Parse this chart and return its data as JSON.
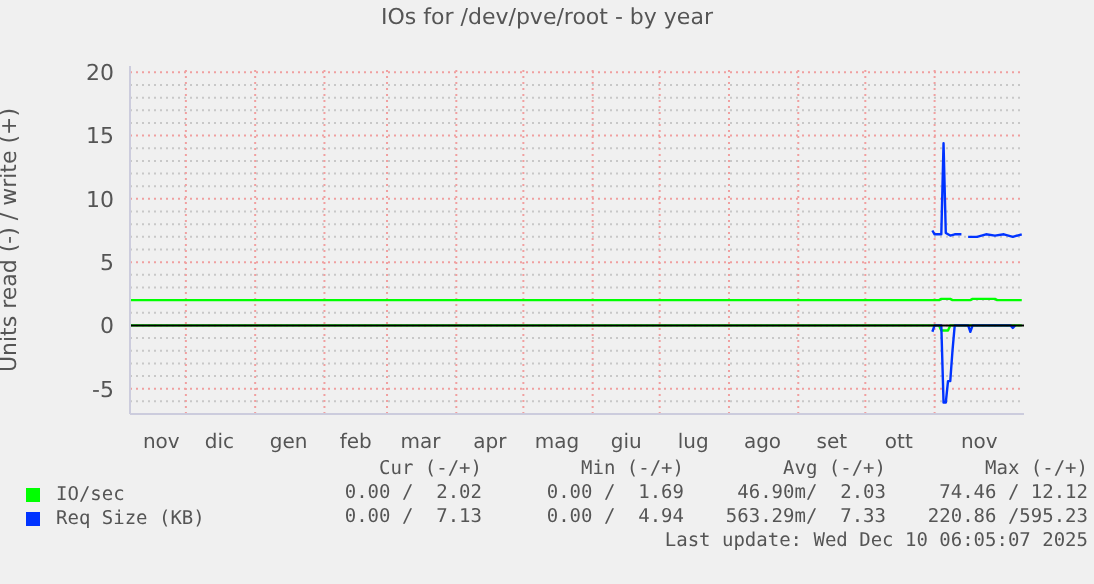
{
  "chart_data": {
    "type": "line",
    "title": "IOs for /dev/pve/root - by year",
    "ylabel": "Units read (-) / write (+)",
    "xlim": [
      "2024-11-06",
      "2025-12-11"
    ],
    "xticks": [
      {
        "value": "2024-11-20",
        "label": "nov"
      },
      {
        "value": "2024-12-01",
        "label": null
      },
      {
        "value": "2024-12-16",
        "label": "dic"
      },
      {
        "value": "2025-01-01",
        "label": null
      },
      {
        "value": "2025-01-16",
        "label": "gen"
      },
      {
        "value": "2025-02-01",
        "label": null
      },
      {
        "value": "2025-02-15",
        "label": "feb"
      },
      {
        "value": "2025-03-01",
        "label": null
      },
      {
        "value": "2025-03-16",
        "label": "mar"
      },
      {
        "value": "2025-04-01",
        "label": null
      },
      {
        "value": "2025-04-16",
        "label": "apr"
      },
      {
        "value": "2025-05-01",
        "label": null
      },
      {
        "value": "2025-05-16",
        "label": "mag"
      },
      {
        "value": "2025-06-01",
        "label": null
      },
      {
        "value": "2025-06-16",
        "label": "giu"
      },
      {
        "value": "2025-07-01",
        "label": null
      },
      {
        "value": "2025-07-16",
        "label": "lug"
      },
      {
        "value": "2025-08-01",
        "label": null
      },
      {
        "value": "2025-08-16",
        "label": "ago"
      },
      {
        "value": "2025-09-01",
        "label": null
      },
      {
        "value": "2025-09-16",
        "label": "set"
      },
      {
        "value": "2025-10-01",
        "label": null
      },
      {
        "value": "2025-10-16",
        "label": "ott"
      },
      {
        "value": "2025-11-01",
        "label": null
      },
      {
        "value": "2025-11-21",
        "label": "nov"
      }
    ],
    "ylim": [
      -7,
      20.5
    ],
    "yticks": [
      {
        "value": -7,
        "label": null
      },
      {
        "value": -6,
        "label": null
      },
      -5,
      {
        "value": -4,
        "label": null
      },
      {
        "value": -3,
        "label": null
      },
      {
        "value": -2,
        "label": null
      },
      {
        "value": -1,
        "label": null
      },
      0,
      {
        "value": 1,
        "label": null
      },
      {
        "value": 2,
        "label": null
      },
      {
        "value": 3,
        "label": null
      },
      {
        "value": 4,
        "label": null
      },
      5,
      {
        "value": 6,
        "label": null
      },
      {
        "value": 7,
        "label": null
      },
      {
        "value": 8,
        "label": null
      },
      {
        "value": 9,
        "label": null
      },
      10,
      {
        "value": 11,
        "label": null
      },
      {
        "value": 12,
        "label": null
      },
      {
        "value": 13,
        "label": null
      },
      {
        "value": 14,
        "label": null
      },
      15,
      {
        "value": 16,
        "label": null
      },
      {
        "value": 17,
        "label": null
      },
      {
        "value": 18,
        "label": null
      },
      {
        "value": 19,
        "label": null
      },
      20
    ],
    "grid": true,
    "legend": "bottom",
    "marker": "none",
    "line_style": "solid",
    "ref_lines": [
      {
        "axis": "y",
        "value": 0,
        "color": "#000000"
      }
    ],
    "series": [
      {
        "name": "IO/sec",
        "color": "#00ff00",
        "x": [
          "2024-11-06",
          "2025-11-03",
          "2025-11-04",
          "2025-11-08",
          "2025-11-09",
          "2025-11-17",
          "2025-11-18",
          "2025-11-28",
          "2025-11-29",
          "2025-12-10"
        ],
        "values": [
          2.0,
          2.0,
          2.1,
          2.1,
          2.0,
          2.0,
          2.1,
          2.1,
          2.0,
          2.0
        ]
      },
      {
        "color": "#00ff00",
        "x": [
          "2024-11-06",
          "2025-11-03",
          "2025-11-04",
          "2025-11-07",
          "2025-11-08",
          "2025-12-10"
        ],
        "values": [
          0,
          0,
          -0.4,
          -0.4,
          0,
          0
        ]
      },
      {
        "name": "Req Size (KB)",
        "color": "#0033ff",
        "x": [
          "2025-10-31",
          "2025-11-01",
          "2025-11-04",
          "2025-11-05",
          "2025-11-06",
          "2025-11-08",
          "2025-11-10",
          "2025-11-13",
          "2025-11-14",
          "2025-11-15",
          "2025-11-16",
          "2025-11-20",
          "2025-11-24",
          "2025-11-28",
          "2025-12-02",
          "2025-12-06",
          "2025-12-10"
        ],
        "values": [
          7.5,
          7.2,
          7.2,
          14.4,
          7.3,
          7.1,
          7.2,
          7.2,
          null,
          null,
          7.0,
          7.0,
          7.2,
          7.1,
          7.2,
          7.0,
          7.2
        ]
      },
      {
        "color": "#0033ff",
        "x": [
          "2025-10-31",
          "2025-11-01",
          "2025-11-04",
          "2025-11-05",
          "2025-11-06",
          "2025-11-07",
          "2025-11-08",
          "2025-11-09",
          "2025-11-10",
          "2025-11-12",
          "2025-11-16",
          "2025-11-17",
          "2025-11-18",
          "2025-11-19",
          "2025-12-05",
          "2025-12-06",
          "2025-12-07"
        ],
        "values": [
          -0.5,
          0,
          0,
          -6.1,
          -6.1,
          -4.4,
          -4.4,
          -2.0,
          0,
          0,
          0,
          -0.5,
          0,
          0,
          0,
          -0.2,
          0
        ]
      }
    ],
    "annotations": [
      "Cur (-/+)",
      "Min (-/+)",
      "Avg (-/+)",
      "Max (-/+)",
      "0.00 /  2.02",
      "0.00 /  1.69",
      "46.90m/  2.03",
      "74.46 / 12.12",
      "0.00 /  7.13",
      "0.00 /  4.94",
      "563.29m/  7.33",
      "220.86 /595.23",
      "Last update: Wed Dec 10 06:05:07 2025"
    ]
  }
}
